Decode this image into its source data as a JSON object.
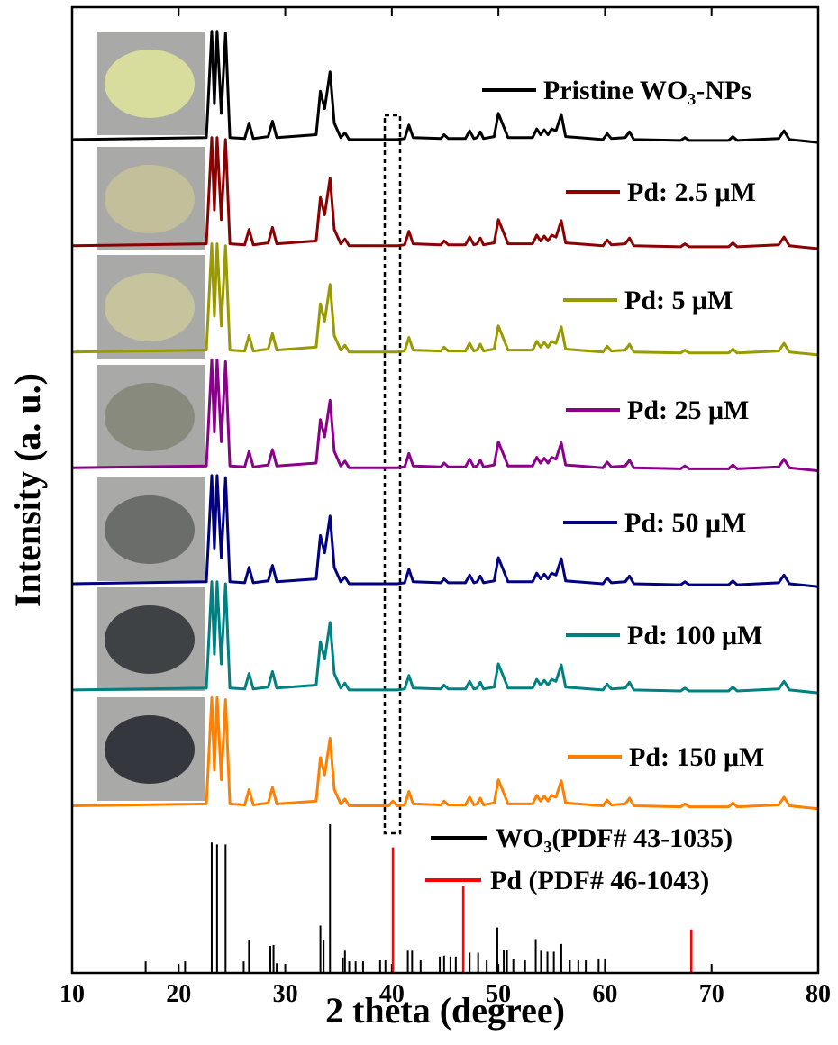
{
  "chart_data": {
    "type": "line",
    "xlabel": "2 theta (degree)",
    "ylabel": "Intensity (a. u.)",
    "xlim": [
      10,
      80
    ],
    "xticks": [
      10,
      20,
      30,
      40,
      50,
      60,
      70,
      80
    ],
    "ylim": [
      0,
      100
    ],
    "x": [
      10,
      22.6,
      23.1,
      23.35,
      23.6,
      24.0,
      24.4,
      24.8,
      26.2,
      26.6,
      27.0,
      28.4,
      28.8,
      29.2,
      32.9,
      33.3,
      33.7,
      34.2,
      34.6,
      35.2,
      35.6,
      36.0,
      39.7,
      40.1,
      40.5,
      41.2,
      41.6,
      42.0,
      44.6,
      44.9,
      45.3,
      46.9,
      47.3,
      47.7,
      48.0,
      48.3,
      48.6,
      49.6,
      50.0,
      50.5,
      50.9,
      53.2,
      53.6,
      53.95,
      54.3,
      54.65,
      55.0,
      55.4,
      55.9,
      56.3,
      59.8,
      60.2,
      60.6,
      61.9,
      62.3,
      62.7,
      67.1,
      67.5,
      67.9,
      71.6,
      72.0,
      72.4,
      76.3,
      76.8,
      77.3,
      80
    ],
    "series": [
      {
        "name": "Pristine WO₃-NPs",
        "color": "#000000",
        "values": [
          86.3,
          86.5,
          97.5,
          90,
          97.5,
          89,
          97.3,
          86.5,
          86.4,
          88,
          86.4,
          86.6,
          88.2,
          86.5,
          86.8,
          91.3,
          89.5,
          93.3,
          88,
          86.5,
          87,
          86.3,
          86.3,
          86.3,
          86.3,
          86.4,
          87.8,
          86.5,
          86.4,
          86.8,
          86.4,
          86.4,
          87.2,
          86.4,
          86.5,
          87.1,
          86.4,
          86.6,
          89,
          87.6,
          86.5,
          86.5,
          87.4,
          86.8,
          87.3,
          86.8,
          87.4,
          87.2,
          88.9,
          86.6,
          86.3,
          86.9,
          86.4,
          86.5,
          87.1,
          86.3,
          86.2,
          86.5,
          86.2,
          86.2,
          86.6,
          86.2,
          86.4,
          87.2,
          86.3,
          86
        ]
      },
      {
        "name": "Pd: 2.5 μM",
        "color": "#8b0000",
        "values": [
          75.3,
          75.5,
          86.5,
          79,
          86.5,
          78,
          86.3,
          75.5,
          75.4,
          77,
          75.4,
          75.6,
          77.2,
          75.5,
          75.8,
          80.3,
          78.5,
          82.3,
          77,
          75.5,
          76,
          75.3,
          75.3,
          75.3,
          75.3,
          75.4,
          76.8,
          75.5,
          75.4,
          75.8,
          75.4,
          75.4,
          76.2,
          75.4,
          75.5,
          76.1,
          75.4,
          75.6,
          78,
          76.6,
          75.5,
          75.5,
          76.4,
          75.8,
          76.3,
          75.8,
          76.4,
          76.2,
          77.9,
          75.6,
          75.3,
          75.9,
          75.4,
          75.5,
          76.1,
          75.3,
          75.2,
          75.5,
          75.2,
          75.2,
          75.6,
          75.2,
          75.4,
          76.2,
          75.3,
          75
        ]
      },
      {
        "name": "Pd: 5 μM",
        "color": "#999900",
        "values": [
          64.3,
          64.5,
          75.5,
          68,
          75.5,
          67,
          75.3,
          64.5,
          64.4,
          66,
          64.4,
          64.6,
          66.2,
          64.5,
          64.8,
          69.3,
          67.5,
          71.3,
          66,
          64.5,
          65,
          64.3,
          64.3,
          64.3,
          64.3,
          64.4,
          65.8,
          64.5,
          64.4,
          64.8,
          64.4,
          64.4,
          65.2,
          64.4,
          64.5,
          65.1,
          64.4,
          64.6,
          67,
          65.6,
          64.5,
          64.5,
          65.4,
          64.8,
          65.3,
          64.8,
          65.4,
          65.2,
          66.9,
          64.6,
          64.3,
          64.9,
          64.4,
          64.5,
          65.1,
          64.3,
          64.2,
          64.5,
          64.2,
          64.2,
          64.6,
          64.2,
          64.4,
          65.2,
          64.3,
          64
        ]
      },
      {
        "name": "Pd: 25 μM",
        "color": "#8b008b",
        "values": [
          52.3,
          52.5,
          63.5,
          56,
          63.5,
          55,
          63.3,
          52.5,
          52.4,
          54,
          52.4,
          52.6,
          54.2,
          52.5,
          52.8,
          57.3,
          55.5,
          59.3,
          54,
          52.5,
          53,
          52.3,
          52.3,
          52.3,
          52.3,
          52.4,
          53.8,
          52.5,
          52.4,
          52.8,
          52.4,
          52.4,
          53.2,
          52.4,
          52.5,
          53.1,
          52.4,
          52.6,
          55,
          53.6,
          52.5,
          52.5,
          53.4,
          52.8,
          53.3,
          52.8,
          53.4,
          53.2,
          54.9,
          52.6,
          52.3,
          52.9,
          52.4,
          52.5,
          53.1,
          52.3,
          52.2,
          52.5,
          52.2,
          52.2,
          52.6,
          52.2,
          52.4,
          53.2,
          52.3,
          52
        ]
      },
      {
        "name": "Pd: 50 μM",
        "color": "#000080",
        "values": [
          40.3,
          40.5,
          51.5,
          44,
          51.5,
          43,
          51.3,
          40.5,
          40.4,
          42,
          40.4,
          40.6,
          42.2,
          40.5,
          40.8,
          45.3,
          43.5,
          47.3,
          42,
          40.5,
          41,
          40.3,
          40.3,
          40.3,
          40.3,
          40.4,
          41.8,
          40.5,
          40.4,
          40.8,
          40.4,
          40.4,
          41.2,
          40.4,
          40.5,
          41.1,
          40.4,
          40.6,
          43,
          41.6,
          40.5,
          40.5,
          41.4,
          40.8,
          41.3,
          40.8,
          41.4,
          41.2,
          42.9,
          40.6,
          40.3,
          40.9,
          40.4,
          40.5,
          41.1,
          40.3,
          40.2,
          40.5,
          40.2,
          40.2,
          40.6,
          40.2,
          40.4,
          41.2,
          40.3,
          40
        ]
      },
      {
        "name": "Pd: 100 μM",
        "color": "#008080",
        "values": [
          29.3,
          29.5,
          40.5,
          33,
          40.5,
          32,
          40.3,
          29.5,
          29.4,
          31,
          29.4,
          29.6,
          31.2,
          29.5,
          29.8,
          34.3,
          32.5,
          36.3,
          31,
          29.5,
          30,
          29.3,
          29.3,
          29.3,
          29.3,
          29.4,
          30.8,
          29.5,
          29.4,
          29.8,
          29.4,
          29.4,
          30.2,
          29.4,
          29.5,
          30.1,
          29.4,
          29.6,
          32,
          30.6,
          29.5,
          29.5,
          30.4,
          29.8,
          30.3,
          29.8,
          30.4,
          30.2,
          31.9,
          29.6,
          29.3,
          29.9,
          29.4,
          29.5,
          30.1,
          29.3,
          29.2,
          29.5,
          29.2,
          29.2,
          29.6,
          29.2,
          29.4,
          30.2,
          29.3,
          29
        ]
      },
      {
        "name": "Pd: 150 μM",
        "color": "#ff8000",
        "values": [
          17.3,
          17.5,
          28.5,
          21,
          28.5,
          20,
          28.3,
          17.5,
          17.4,
          19,
          17.4,
          17.6,
          19.2,
          17.5,
          17.8,
          22.3,
          20.5,
          24.3,
          19,
          17.5,
          18,
          17.3,
          17.3,
          17.8,
          17.3,
          17.4,
          18.8,
          17.5,
          17.4,
          17.8,
          17.4,
          17.4,
          18.2,
          17.4,
          17.5,
          18.1,
          17.4,
          17.6,
          20,
          18.6,
          17.5,
          17.5,
          18.4,
          17.8,
          18.3,
          17.8,
          18.4,
          18.2,
          19.9,
          17.6,
          17.3,
          17.9,
          17.4,
          17.5,
          18.1,
          17.3,
          17.2,
          17.5,
          17.2,
          17.2,
          17.6,
          17.2,
          17.4,
          18.2,
          17.3,
          17
        ]
      }
    ],
    "references": [
      {
        "name": "WO₃(PDF# 43-1035)",
        "color": "#000000",
        "x": [
          16.9,
          20.6,
          23.1,
          23.6,
          24.4,
          26.1,
          26.6,
          28.6,
          28.9,
          29.2,
          33.3,
          33.6,
          34.2,
          35.4,
          35.6,
          36.0,
          36.6,
          37.3,
          38.9,
          39.4,
          41.5,
          41.9,
          42.7,
          44.5,
          44.9,
          45.5,
          46.0,
          47.3,
          48.1,
          48.9,
          49.9,
          50.5,
          50.8,
          51.4,
          52.5,
          53.5,
          54.0,
          54.6,
          55.2,
          55.9,
          56.7,
          57.5,
          58.2,
          59.4,
          60.0
        ],
        "values": [
          1.2,
          1.2,
          13.5,
          13.3,
          13.3,
          1.2,
          3.4,
          2.8,
          2.9,
          1,
          4.9,
          3.4,
          15.4,
          1.6,
          2.3,
          1.2,
          1.2,
          1.2,
          1.3,
          1.3,
          2.3,
          2.3,
          1.3,
          1.7,
          1.8,
          1.7,
          1.7,
          2.1,
          2.1,
          1.3,
          4.7,
          2.4,
          2.4,
          1.4,
          1.3,
          3.5,
          2.3,
          2.2,
          2.2,
          3.0,
          1.3,
          1.3,
          1.3,
          1.5,
          1.5
        ]
      },
      {
        "name": "Pd (PDF# 46-1043)",
        "color": "#ff0000",
        "x": [
          40.1,
          46.7,
          68.1
        ],
        "values": [
          13.0,
          9.0,
          4.5
        ]
      }
    ]
  }
}
